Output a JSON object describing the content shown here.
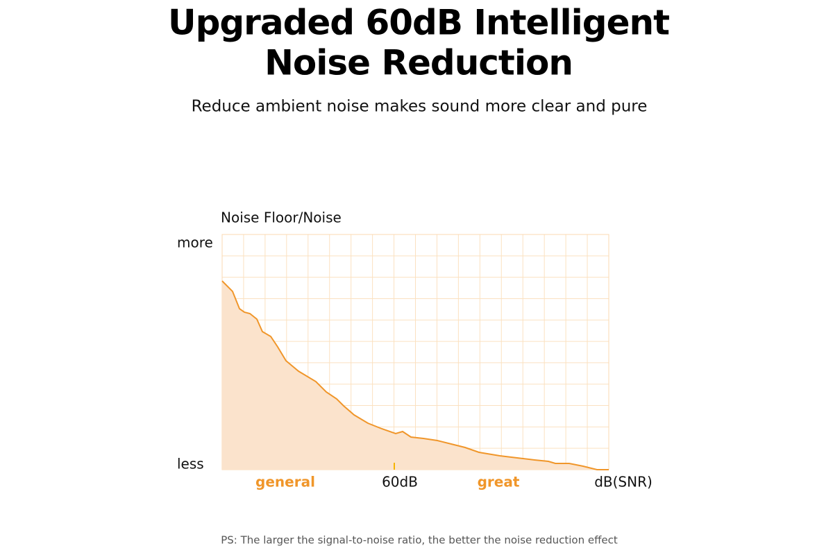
{
  "header": {
    "title_lines": [
      "Upgraded 60dB Intelligent",
      "Noise Reduction"
    ],
    "subtitle": "Reduce ambient noise makes sound more clear and pure"
  },
  "graph": {
    "y_axis_label": "Noise Floor/Noise",
    "y_top_label": "more",
    "y_bottom_label": "less",
    "x_labels": [
      "general",
      "60dB",
      "great"
    ],
    "x_axis_label": "dB(SNR)"
  },
  "footnote": "PS: The larger the signal-to-noise ratio, the better the noise reduction effect"
}
